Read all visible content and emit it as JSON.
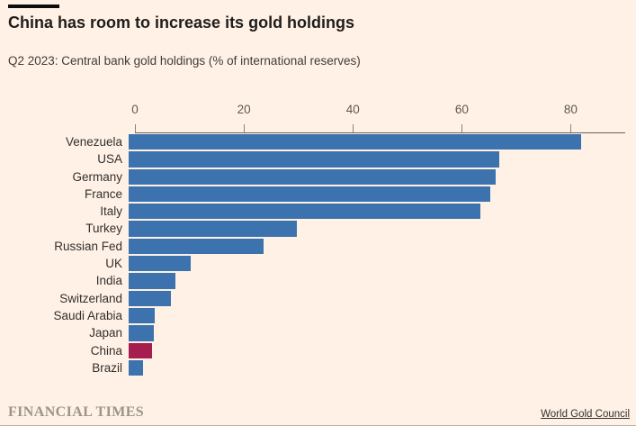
{
  "header": {
    "title": "China has room to increase its gold holdings",
    "subtitle": "Q2 2023: Central bank gold holdings (% of international reserves)"
  },
  "footer": {
    "brand": "FINANCIAL TIMES",
    "source": "World Gold Council"
  },
  "colors": {
    "background": "#fff1e5",
    "bar": "#3c73af",
    "highlight": "#a51e50",
    "axis_line": "#6b645e",
    "tick_mark": "#8a827a",
    "text": "#33302e"
  },
  "chart_data": {
    "type": "bar",
    "orientation": "horizontal",
    "title": "China has room to increase its gold holdings",
    "subtitle": "Q2 2023: Central bank gold holdings (% of international reserves)",
    "categories": [
      "Venezuela",
      "USA",
      "Germany",
      "France",
      "Italy",
      "Turkey",
      "Russian Fed",
      "UK",
      "India",
      "Switzerland",
      "Saudi Arabia",
      "Japan",
      "China",
      "Brazil"
    ],
    "values": [
      83,
      68.1,
      67.4,
      66.4,
      64.5,
      30.8,
      24.8,
      11.4,
      8.6,
      7.8,
      4.8,
      4.6,
      4.3,
      2.6
    ],
    "highlight_category": "China",
    "xlabel": "",
    "ylabel": "",
    "xlim": [
      0,
      90
    ],
    "xticks": [
      0,
      20,
      40,
      60,
      80
    ],
    "grid": false,
    "legend": false,
    "source": "World Gold Council"
  }
}
